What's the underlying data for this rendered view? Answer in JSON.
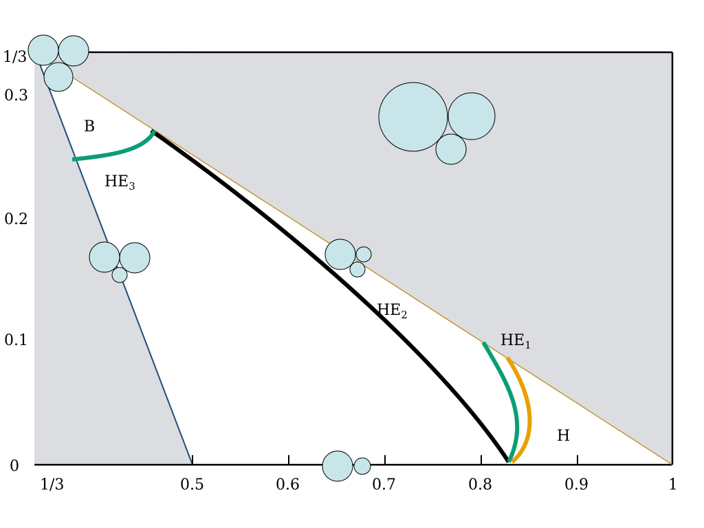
{
  "x_ticks": [
    "1/3",
    "0.5",
    "0.6",
    "0.7",
    "0.8",
    "0.9",
    "1"
  ],
  "y_ticks": [
    "0",
    "0.1",
    "0.2",
    "0.3",
    "1/3"
  ],
  "x_tick_values": [
    0.3333,
    0.5,
    0.6,
    0.7,
    0.8,
    0.9,
    1.0
  ],
  "y_tick_values": [
    0,
    0.1,
    0.2,
    0.3,
    0.3333
  ],
  "regions": [
    {
      "id": "B",
      "base": "B",
      "sub": ""
    },
    {
      "id": "HE3",
      "base": "HE",
      "sub": "3"
    },
    {
      "id": "HE2",
      "base": "HE",
      "sub": "2"
    },
    {
      "id": "HE1",
      "base": "HE",
      "sub": "1"
    },
    {
      "id": "H",
      "base": "H",
      "sub": ""
    }
  ],
  "colors": {
    "background": "#ffffff",
    "excluded_region": "#dcdde0",
    "disk_fill": "#c8e6ea",
    "boundary_green": "#0a9e75",
    "boundary_orange": "#e8a000",
    "boundary_black": "#000000",
    "edge_blue": "#1f4e79",
    "edge_orange": "#b8860b"
  }
}
